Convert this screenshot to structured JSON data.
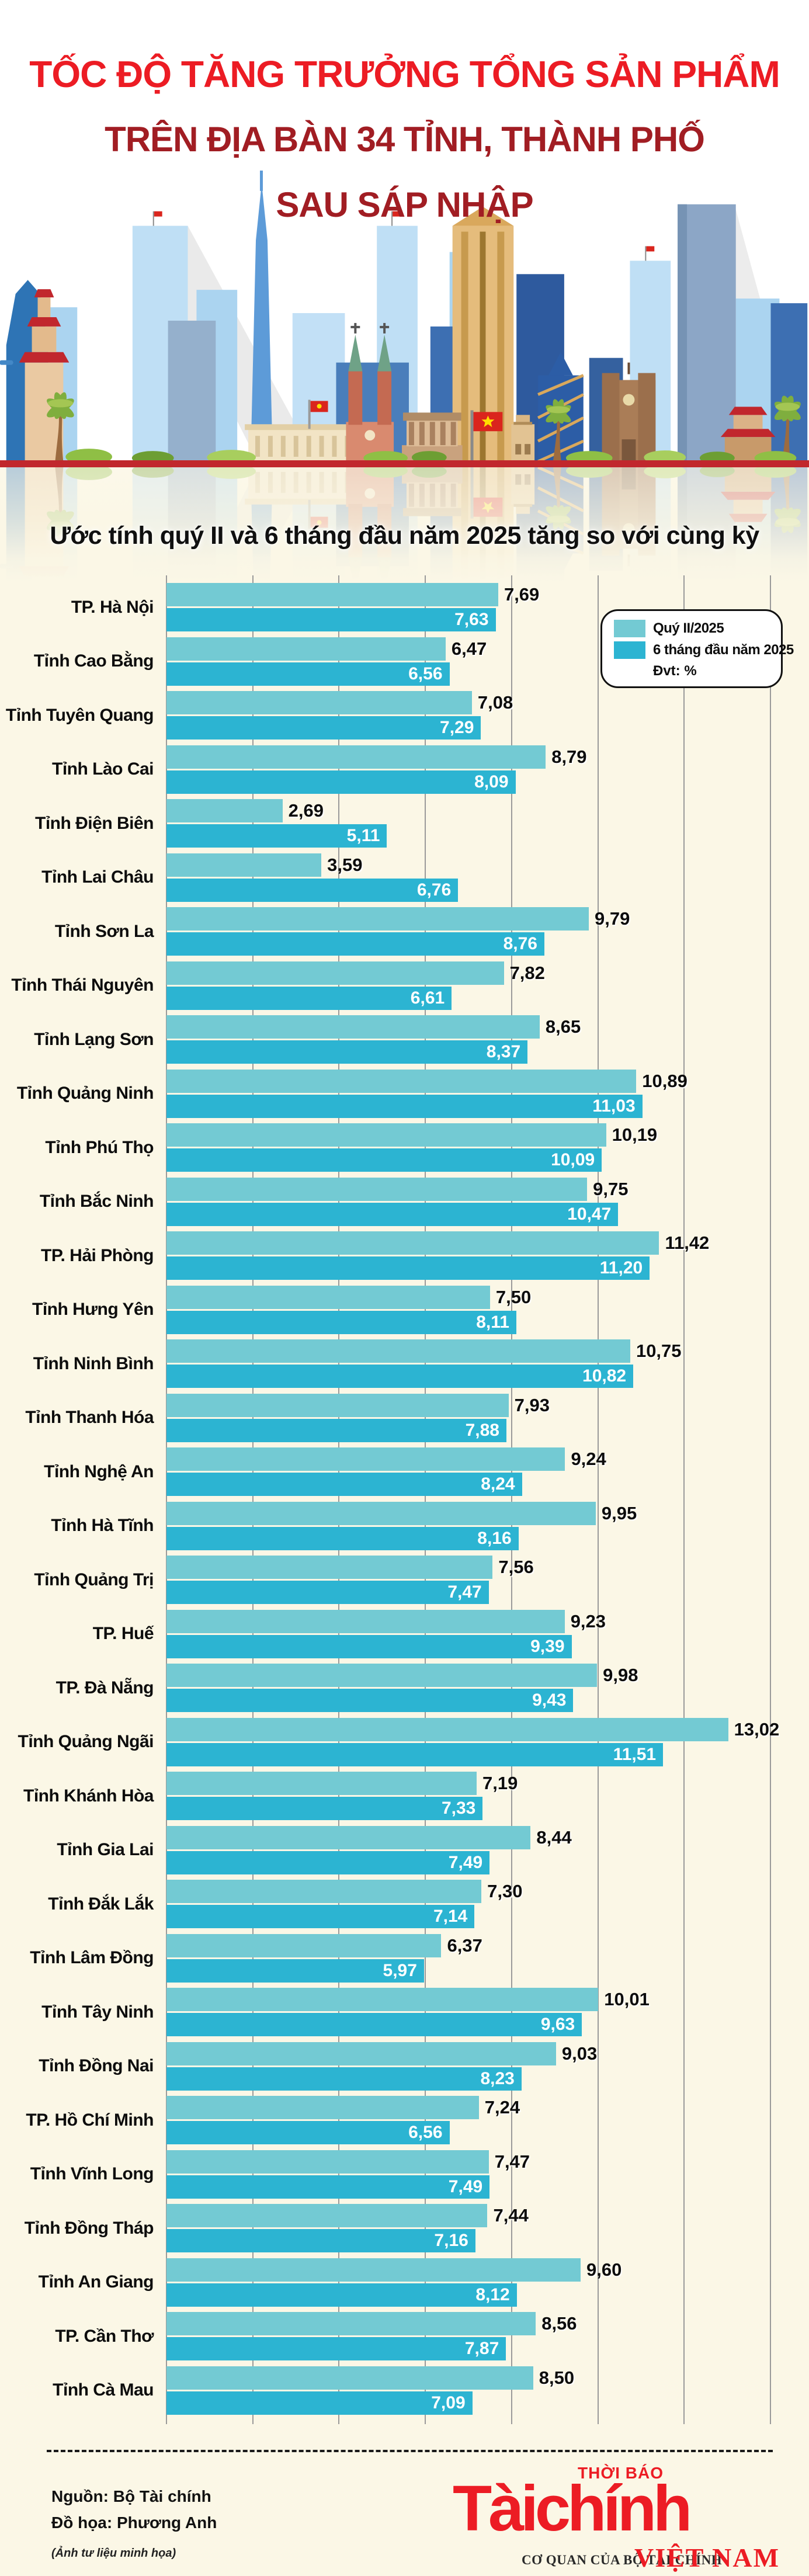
{
  "title": {
    "line1": "TỐC ĐỘ TĂNG TRƯỞNG TỔNG SẢN PHẨM",
    "line2": "TRÊN ĐỊA BÀN 34 TỈNH, THÀNH PHỐ",
    "line3": "SAU SÁP NHẬP"
  },
  "subtitle": "Ước tính quý II và 6 tháng đầu năm 2025 tăng so với cùng kỳ",
  "legend": {
    "unit_label": "Đvt: %"
  },
  "chart_data": {
    "type": "bar",
    "orientation": "horizontal",
    "title": "Tốc độ tăng trưởng tổng sản phẩm trên địa bàn 34 tỉnh, thành phố sau sáp nhập",
    "unit": "%",
    "xlim": [
      0,
      14
    ],
    "grid_step": 2,
    "grid_on": true,
    "legend_position": "top-right",
    "categories": [
      "TP. Hà Nội",
      "Tỉnh Cao Bằng",
      "Tỉnh Tuyên Quang",
      "Tỉnh Lào Cai",
      "Tỉnh Điện Biên",
      "Tỉnh Lai Châu",
      "Tỉnh Sơn La",
      "Tỉnh Thái Nguyên",
      "Tỉnh Lạng Sơn",
      "Tỉnh Quảng Ninh",
      "Tỉnh Phú Thọ",
      "Tỉnh Bắc Ninh",
      "TP. Hải Phòng",
      "Tỉnh Hưng Yên",
      "Tỉnh Ninh Bình",
      "Tỉnh Thanh Hóa",
      "Tỉnh Nghệ An",
      "Tỉnh Hà Tĩnh",
      "Tỉnh Quảng Trị",
      "TP. Huế",
      "TP. Đà Nẵng",
      "Tỉnh Quảng Ngãi",
      "Tỉnh Khánh Hòa",
      "Tỉnh Gia Lai",
      "Tỉnh Đắk Lắk",
      "Tỉnh Lâm Đồng",
      "Tỉnh Tây Ninh",
      "Tỉnh Đồng Nai",
      "TP. Hồ Chí Minh",
      "Tỉnh Vĩnh Long",
      "Tỉnh Đồng Tháp",
      "Tỉnh An Giang",
      "TP. Cần Thơ",
      "Tỉnh Cà Mau"
    ],
    "series": [
      {
        "name": "Quý II/2025",
        "color": "#73CAD3",
        "values": [
          7.69,
          6.47,
          7.08,
          8.79,
          2.69,
          3.59,
          9.79,
          7.82,
          8.65,
          10.89,
          10.19,
          9.75,
          11.42,
          7.5,
          10.75,
          7.93,
          9.24,
          9.95,
          7.56,
          9.23,
          9.98,
          13.02,
          7.19,
          8.44,
          7.3,
          6.37,
          10.01,
          9.03,
          7.24,
          7.47,
          7.44,
          9.6,
          8.56,
          8.5
        ]
      },
      {
        "name": "6 tháng đầu năm 2025",
        "color": "#2CB4D2",
        "values": [
          7.63,
          6.56,
          7.29,
          8.09,
          5.11,
          6.76,
          8.76,
          6.61,
          8.37,
          11.03,
          10.09,
          10.47,
          11.2,
          8.11,
          10.82,
          7.88,
          8.24,
          8.16,
          7.47,
          9.39,
          9.43,
          11.51,
          7.33,
          7.49,
          7.14,
          5.97,
          9.63,
          8.23,
          6.56,
          7.49,
          7.16,
          8.12,
          7.87,
          7.09
        ]
      }
    ]
  },
  "footer": {
    "source": "Nguồn: Bộ Tài chính",
    "credit": "Đồ họa: Phương Anh",
    "note": "(Ảnh tư liệu minh họa)"
  },
  "logo": {
    "tagline": "THỜI BÁO",
    "brand": "Tàichính",
    "country": "VIỆT NAM",
    "org": "CƠ QUAN CỦA BỘ TÀI CHÍNH"
  },
  "colors": {
    "title_bright_red": "#EC1C24",
    "title_dark_red": "#A11D23",
    "band_red": "#C1272D",
    "background_cream": "#FBF7E6",
    "bar_q2": "#73CAD3",
    "bar_h1": "#2CB4D2",
    "gridline": "#9A9A9A"
  }
}
